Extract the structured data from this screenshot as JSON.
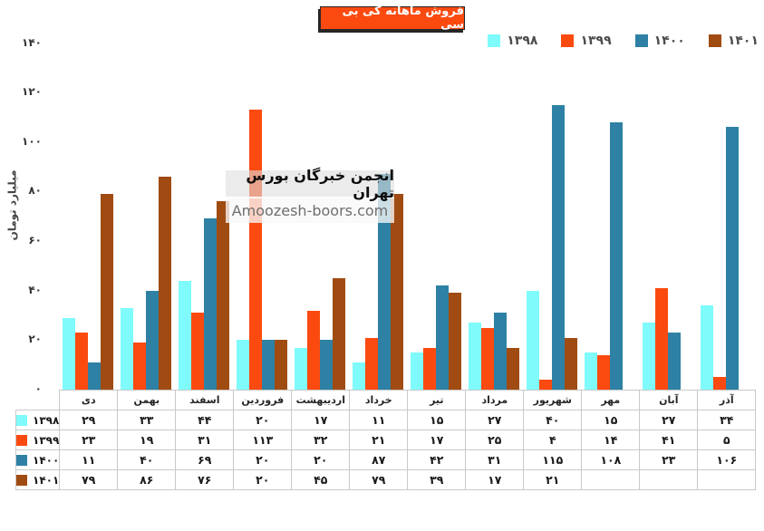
{
  "title": "فروش ماهانه کی بی سی",
  "watermark": {
    "line1": "انجمن خبرگان بورس تهران",
    "line2": "Amoozesh-boors.com"
  },
  "y_axis": {
    "label": "میلیارد تومان",
    "tick_values": [
      0,
      20,
      40,
      60,
      80,
      100,
      120,
      140
    ]
  },
  "colors": {
    "title_bg": "#FB4A10",
    "title_text": "#FFFFFF",
    "table_border": "#C9C9C9"
  },
  "chart_data": {
    "type": "bar",
    "title": "فروش ماهانه کی بی سی",
    "xlabel": "",
    "ylabel": "میلیارد تومان",
    "ylim": [
      0,
      140
    ],
    "ytick_step": 20,
    "grid": false,
    "legend_position": "top-right",
    "digits": "persian",
    "data_table_shown": true,
    "categories": [
      "دی",
      "بهمن",
      "اسفند",
      "فروردین",
      "اردیبهشت",
      "خرداد",
      "تیر",
      "مرداد",
      "شهریور",
      "مهر",
      "آبان",
      "آذر"
    ],
    "series": [
      {
        "name": "1398",
        "label_fa": "۱۳۹۸",
        "color": "#7FFBFB",
        "values": [
          29,
          33,
          44,
          20,
          17,
          11,
          15,
          27,
          40,
          15,
          27,
          34
        ]
      },
      {
        "name": "1399",
        "label_fa": "۱۳۹۹",
        "color": "#FB4A10",
        "values": [
          23,
          19,
          31,
          113,
          32,
          21,
          17,
          25,
          4,
          14,
          41,
          5
        ]
      },
      {
        "name": "1400",
        "label_fa": "۱۴۰۰",
        "color": "#2E81A4",
        "values": [
          11,
          40,
          69,
          20,
          20,
          87,
          42,
          31,
          115,
          108,
          23,
          106
        ]
      },
      {
        "name": "1401",
        "label_fa": "۱۴۰۱",
        "color": "#A04B12",
        "values": [
          79,
          86,
          76,
          20,
          45,
          79,
          39,
          17,
          21,
          null,
          null,
          null
        ]
      }
    ]
  }
}
